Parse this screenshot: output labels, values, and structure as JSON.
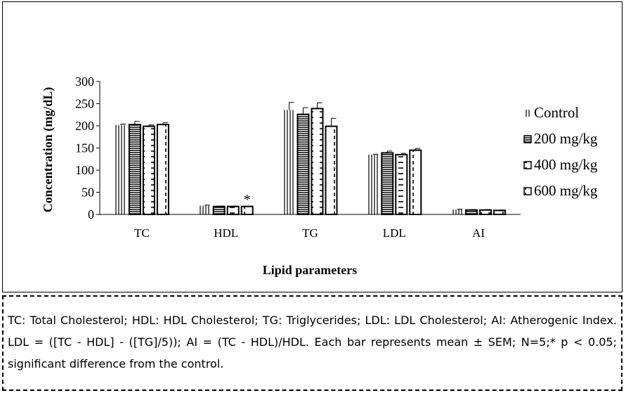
{
  "chart_data": {
    "type": "bar",
    "title": "",
    "xlabel": "Lipid parameters",
    "ylabel": "Concentration (mg/dL)",
    "ylim": [
      0,
      300
    ],
    "yticks": [
      0,
      50,
      100,
      150,
      200,
      250,
      300
    ],
    "categories": [
      "TC",
      "HDL",
      "TG",
      "LDL",
      "AI"
    ],
    "series": [
      {
        "name": "Control",
        "pattern": "vertical-lines",
        "values": [
          202,
          20,
          236,
          135,
          11
        ],
        "errors": [
          2,
          1,
          17,
          1,
          1
        ]
      },
      {
        "name": "200 mg/kg",
        "pattern": "horizontal-lines",
        "values": [
          203,
          18,
          226,
          139,
          10
        ],
        "errors": [
          7,
          1,
          15,
          4,
          1
        ]
      },
      {
        "name": "400 mg/kg",
        "pattern": "dashes",
        "values": [
          199,
          18,
          239,
          135,
          10
        ],
        "errors": [
          3,
          1,
          13,
          3,
          1
        ]
      },
      {
        "name": "600 mg/kg",
        "pattern": "dashed-vertical",
        "values": [
          203,
          18,
          199,
          145,
          9
        ],
        "errors": [
          4,
          1,
          18,
          4,
          1
        ]
      }
    ],
    "annotations": [
      {
        "category": "HDL",
        "series": "600 mg/kg",
        "text": "*"
      }
    ],
    "legend": "right",
    "grid": false
  },
  "caption": "TC: Total Cholesterol; HDL: HDL Cholesterol; TG: Triglycerides; LDL: LDL Cholesterol; AI: Atherogenic Index. LDL = ([TC - HDL] - ([TG]/5)); AI = (TC - HDL)/HDL. Each bar represents mean ± SEM; N=5;* p < 0.05; significant difference from the control."
}
